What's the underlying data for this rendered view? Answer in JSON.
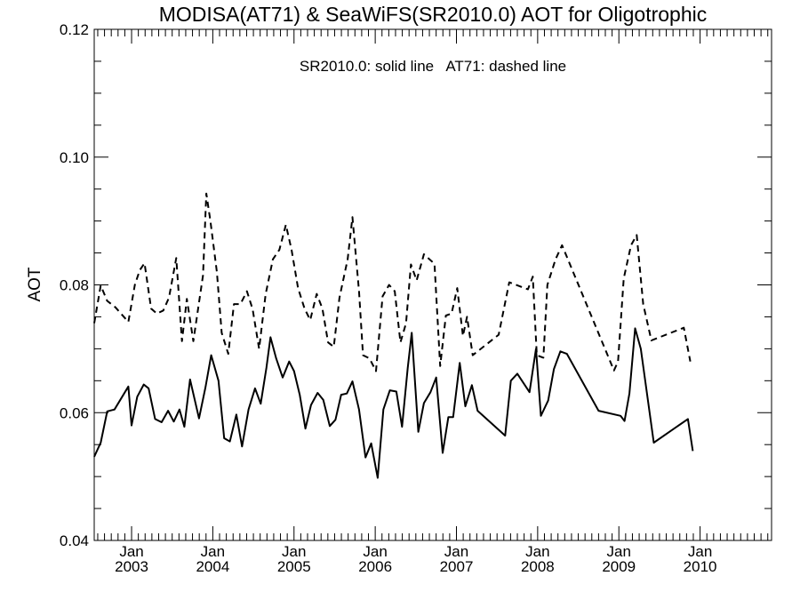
{
  "chart_data": {
    "type": "line",
    "title": "MODISA(AT71) & SeaWiFS(SR2010.0)  AOT for Oligotrophic",
    "annotation": "SR2010.0: solid line   AT71: dashed line",
    "xlabel": "",
    "ylabel": "AOT",
    "xlim": [
      2002.54,
      2010.88
    ],
    "ylim": [
      0.04,
      0.12
    ],
    "yticks": [
      "0.04",
      "0.06",
      "0.08",
      "0.10",
      "0.12"
    ],
    "xticks": [
      {
        "month": "Jan",
        "year": "2003",
        "x": 2003.0
      },
      {
        "month": "Jan",
        "year": "2004",
        "x": 2004.0
      },
      {
        "month": "Jan",
        "year": "2005",
        "x": 2005.0
      },
      {
        "month": "Jan",
        "year": "2006",
        "x": 2006.0
      },
      {
        "month": "Jan",
        "year": "2007",
        "x": 2007.0
      },
      {
        "month": "Jan",
        "year": "2008",
        "x": 2008.0
      },
      {
        "month": "Jan",
        "year": "2009",
        "x": 2009.0
      },
      {
        "month": "Jan",
        "year": "2010",
        "x": 2010.0
      }
    ],
    "grid": false,
    "series": [
      {
        "style": "solid",
        "points": [
          [
            2002.54,
            0.0531
          ],
          [
            2002.62,
            0.0553
          ],
          [
            2002.7,
            0.0602
          ],
          [
            2002.79,
            0.0605
          ],
          [
            2002.96,
            0.0641
          ],
          [
            2003.0,
            0.058
          ],
          [
            2003.07,
            0.0625
          ],
          [
            2003.15,
            0.0644
          ],
          [
            2003.21,
            0.0638
          ],
          [
            2003.29,
            0.059
          ],
          [
            2003.37,
            0.0585
          ],
          [
            2003.45,
            0.0603
          ],
          [
            2003.52,
            0.0586
          ],
          [
            2003.59,
            0.0605
          ],
          [
            2003.65,
            0.0578
          ],
          [
            2003.72,
            0.0652
          ],
          [
            2003.83,
            0.0591
          ],
          [
            2003.91,
            0.064
          ],
          [
            2003.98,
            0.069
          ],
          [
            2004.07,
            0.065
          ],
          [
            2004.14,
            0.056
          ],
          [
            2004.21,
            0.0555
          ],
          [
            2004.29,
            0.0597
          ],
          [
            2004.36,
            0.0547
          ],
          [
            2004.44,
            0.0605
          ],
          [
            2004.52,
            0.0638
          ],
          [
            2004.59,
            0.0614
          ],
          [
            2004.66,
            0.067
          ],
          [
            2004.71,
            0.0718
          ],
          [
            2004.78,
            0.0685
          ],
          [
            2004.86,
            0.0655
          ],
          [
            2004.94,
            0.068
          ],
          [
            2005.0,
            0.0665
          ],
          [
            2005.07,
            0.0628
          ],
          [
            2005.14,
            0.0575
          ],
          [
            2005.21,
            0.0612
          ],
          [
            2005.29,
            0.0631
          ],
          [
            2005.36,
            0.062
          ],
          [
            2005.44,
            0.0579
          ],
          [
            2005.51,
            0.0589
          ],
          [
            2005.58,
            0.0628
          ],
          [
            2005.65,
            0.063
          ],
          [
            2005.72,
            0.0649
          ],
          [
            2005.8,
            0.0605
          ],
          [
            2005.88,
            0.053
          ],
          [
            2005.95,
            0.0552
          ],
          [
            2006.03,
            0.0498
          ],
          [
            2006.1,
            0.0605
          ],
          [
            2006.18,
            0.0635
          ],
          [
            2006.26,
            0.0633
          ],
          [
            2006.33,
            0.0578
          ],
          [
            2006.4,
            0.067
          ],
          [
            2006.45,
            0.0725
          ],
          [
            2006.53,
            0.057
          ],
          [
            2006.6,
            0.0615
          ],
          [
            2006.68,
            0.0632
          ],
          [
            2006.75,
            0.0655
          ],
          [
            2006.83,
            0.0537
          ],
          [
            2006.9,
            0.0593
          ],
          [
            2006.96,
            0.0593
          ],
          [
            2007.04,
            0.0678
          ],
          [
            2007.11,
            0.061
          ],
          [
            2007.19,
            0.0643
          ],
          [
            2007.26,
            0.0603
          ],
          [
            2007.6,
            0.0564
          ],
          [
            2007.67,
            0.065
          ],
          [
            2007.75,
            0.0661
          ],
          [
            2007.9,
            0.0632
          ],
          [
            2007.98,
            0.07
          ],
          [
            2008.04,
            0.0595
          ],
          [
            2008.13,
            0.0619
          ],
          [
            2008.2,
            0.0668
          ],
          [
            2008.28,
            0.0696
          ],
          [
            2008.36,
            0.0692
          ],
          [
            2008.75,
            0.0603
          ],
          [
            2009.02,
            0.0595
          ],
          [
            2009.07,
            0.0587
          ],
          [
            2009.13,
            0.063
          ],
          [
            2009.2,
            0.0732
          ],
          [
            2009.27,
            0.07
          ],
          [
            2009.43,
            0.0553
          ],
          [
            2009.85,
            0.059
          ],
          [
            2009.91,
            0.054
          ]
        ]
      },
      {
        "style": "dashed",
        "points": [
          [
            2002.54,
            0.074
          ],
          [
            2002.62,
            0.0799
          ],
          [
            2002.7,
            0.0775
          ],
          [
            2002.8,
            0.0765
          ],
          [
            2002.96,
            0.0742
          ],
          [
            2003.04,
            0.08
          ],
          [
            2003.1,
            0.0823
          ],
          [
            2003.16,
            0.0834
          ],
          [
            2003.24,
            0.0763
          ],
          [
            2003.31,
            0.0755
          ],
          [
            2003.39,
            0.076
          ],
          [
            2003.46,
            0.078
          ],
          [
            2003.55,
            0.0842
          ],
          [
            2003.62,
            0.0712
          ],
          [
            2003.68,
            0.0778
          ],
          [
            2003.76,
            0.0712
          ],
          [
            2003.88,
            0.0815
          ],
          [
            2003.92,
            0.0943
          ],
          [
            2003.97,
            0.09
          ],
          [
            2004.05,
            0.082
          ],
          [
            2004.11,
            0.0725
          ],
          [
            2004.19,
            0.0692
          ],
          [
            2004.26,
            0.077
          ],
          [
            2004.34,
            0.077
          ],
          [
            2004.42,
            0.079
          ],
          [
            2004.49,
            0.0762
          ],
          [
            2004.57,
            0.07
          ],
          [
            2004.65,
            0.0785
          ],
          [
            2004.74,
            0.084
          ],
          [
            2004.82,
            0.0855
          ],
          [
            2004.9,
            0.0894
          ],
          [
            2004.97,
            0.0855
          ],
          [
            2005.05,
            0.0795
          ],
          [
            2005.13,
            0.0763
          ],
          [
            2005.2,
            0.0745
          ],
          [
            2005.28,
            0.0786
          ],
          [
            2005.35,
            0.0763
          ],
          [
            2005.42,
            0.071
          ],
          [
            2005.49,
            0.0703
          ],
          [
            2005.56,
            0.078
          ],
          [
            2005.66,
            0.084
          ],
          [
            2005.72,
            0.0906
          ],
          [
            2005.8,
            0.079
          ],
          [
            2005.85,
            0.069
          ],
          [
            2005.93,
            0.0685
          ],
          [
            2006.01,
            0.0665
          ],
          [
            2006.09,
            0.0782
          ],
          [
            2006.17,
            0.08
          ],
          [
            2006.24,
            0.079
          ],
          [
            2006.31,
            0.071
          ],
          [
            2006.38,
            0.074
          ],
          [
            2006.44,
            0.0832
          ],
          [
            2006.51,
            0.0807
          ],
          [
            2006.6,
            0.0848
          ],
          [
            2006.73,
            0.0833
          ],
          [
            2006.8,
            0.0673
          ],
          [
            2006.87,
            0.0752
          ],
          [
            2006.94,
            0.0755
          ],
          [
            2007.01,
            0.0795
          ],
          [
            2007.08,
            0.072
          ],
          [
            2007.13,
            0.075
          ],
          [
            2007.2,
            0.069
          ],
          [
            2007.52,
            0.0722
          ],
          [
            2007.65,
            0.0804
          ],
          [
            2007.88,
            0.0793
          ],
          [
            2007.94,
            0.0813
          ],
          [
            2007.99,
            0.069
          ],
          [
            2008.07,
            0.0686
          ],
          [
            2008.12,
            0.08
          ],
          [
            2008.22,
            0.084
          ],
          [
            2008.3,
            0.0862
          ],
          [
            2008.94,
            0.0666
          ],
          [
            2008.99,
            0.068
          ],
          [
            2009.06,
            0.081
          ],
          [
            2009.15,
            0.0862
          ],
          [
            2009.22,
            0.0878
          ],
          [
            2009.3,
            0.077
          ],
          [
            2009.4,
            0.0713
          ],
          [
            2009.8,
            0.0733
          ],
          [
            2009.88,
            0.068
          ]
        ]
      }
    ]
  }
}
